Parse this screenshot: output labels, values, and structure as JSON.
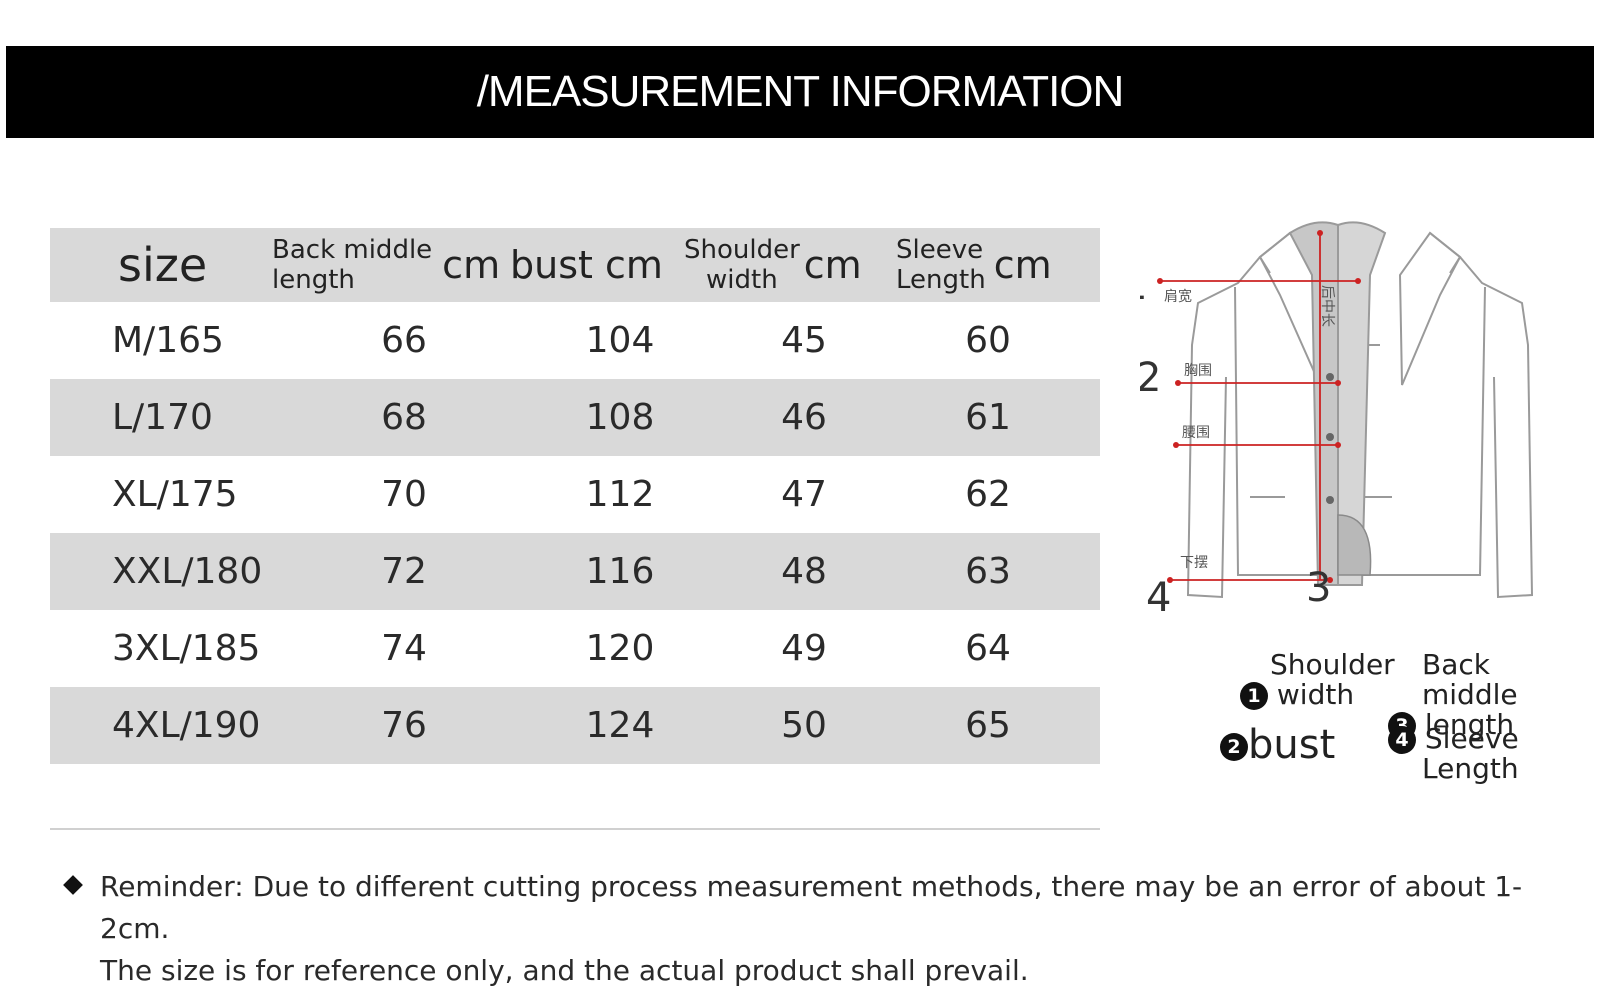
{
  "banner": {
    "title": "/MEASUREMENT INFORMATION"
  },
  "table": {
    "header": {
      "size": "size",
      "back_middle_length": "Back middle length",
      "back_middle_line1": "Back middle",
      "back_middle_line2": "length",
      "bust": "bust",
      "shoulder_line1": "Shoulder",
      "shoulder_line2": "width",
      "sleeve_line1": "Sleeve",
      "sleeve_line2": "Length",
      "unit": "cm"
    },
    "rows": [
      {
        "size": "M/165",
        "back_middle_length": "66",
        "bust": "104",
        "shoulder_width": "45",
        "sleeve_length": "60"
      },
      {
        "size": "L/170",
        "back_middle_length": "68",
        "bust": "108",
        "shoulder_width": "46",
        "sleeve_length": "61"
      },
      {
        "size": "XL/175",
        "back_middle_length": "70",
        "bust": "112",
        "shoulder_width": "47",
        "sleeve_length": "62"
      },
      {
        "size": "XXL/180",
        "back_middle_length": "72",
        "bust": "116",
        "shoulder_width": "48",
        "sleeve_length": "63"
      },
      {
        "size": "3XL/185",
        "back_middle_length": "74",
        "bust": "120",
        "shoulder_width": "49",
        "sleeve_length": "64"
      },
      {
        "size": "4XL/190",
        "back_middle_length": "76",
        "bust": "124",
        "shoulder_width": "50",
        "sleeve_length": "65"
      }
    ]
  },
  "diagram": {
    "markers": [
      "1",
      "2",
      "3",
      "4"
    ],
    "cn_labels": {
      "shoulder": "肩宽",
      "bust": "胸围",
      "waist": "腰围",
      "hem": "下摆",
      "back_length": "后中长"
    }
  },
  "legend": {
    "item1": {
      "num": "1",
      "line1": "Shoulder",
      "line2": "width"
    },
    "item2": {
      "num": "2",
      "label": "bust"
    },
    "item3": {
      "num": "3",
      "line1": "Back middle",
      "line2": "length"
    },
    "item4": {
      "num": "4",
      "line1": "Sleeve",
      "line2": "Length"
    }
  },
  "reminder": {
    "line1": "Reminder: Due to different cutting process measurement methods, there may be an error of about 1-2cm.",
    "line2": "The size is for reference only, and the actual product shall prevail."
  },
  "colors": {
    "banner_bg": "#000000",
    "row_shade": "#d9d9d9",
    "measure_line": "#cc2222"
  }
}
